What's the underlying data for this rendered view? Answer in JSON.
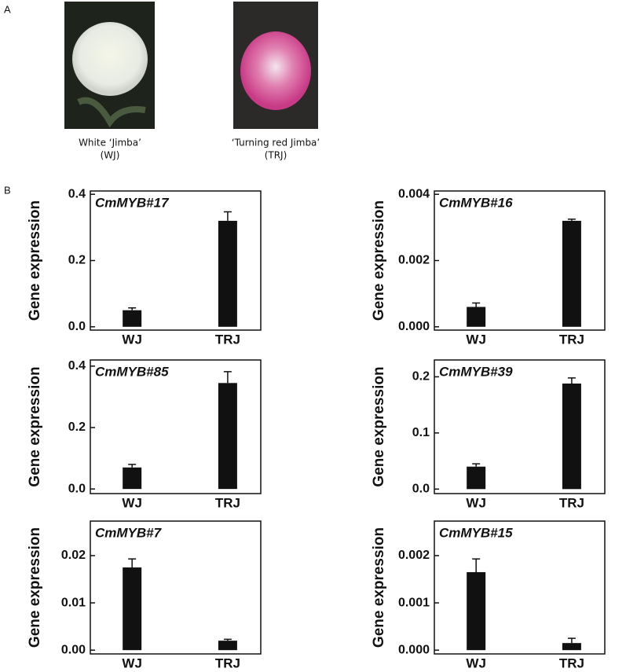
{
  "panels": {
    "a": "A",
    "b": "B"
  },
  "photos": [
    {
      "label": "White ‘Jimba’",
      "code": "(WJ)"
    },
    {
      "label": "‘Turning red Jimba’",
      "code": "(TRJ)"
    }
  ],
  "chart_data": [
    {
      "type": "bar",
      "title": "CmMYB#17",
      "ylabel": "Gene expression",
      "categories": [
        "WJ",
        "TRJ"
      ],
      "values": [
        0.05,
        0.32
      ],
      "errors": [
        0.007,
        0.027
      ],
      "color": "#111111",
      "ylim": [
        -0.01,
        0.41
      ],
      "yticks": [
        {
          "value": 0,
          "label": "0.0"
        },
        0.2,
        0.4
      ]
    },
    {
      "type": "bar",
      "title": "CmMYB#16",
      "ylabel": "Gene expression",
      "categories": [
        "WJ",
        "TRJ"
      ],
      "values": [
        0.0006,
        0.0032
      ],
      "errors": [
        0.00012,
        5e-05
      ],
      "color": "#111111",
      "ylim": [
        -0.0001,
        0.0041
      ],
      "yticks": [
        {
          "value": 0,
          "label": "0.000"
        },
        0.002,
        0.004
      ]
    },
    {
      "type": "bar",
      "title": "CmMYB#85",
      "ylabel": "Gene expression",
      "categories": [
        "WJ",
        "TRJ"
      ],
      "values": [
        0.07,
        0.345
      ],
      "errors": [
        0.01,
        0.037
      ],
      "color": "#111111",
      "ylim": [
        -0.015,
        0.42
      ],
      "yticks": [
        {
          "value": 0,
          "label": "0.0"
        },
        0.2,
        0.4
      ]
    },
    {
      "type": "bar",
      "title": "CmMYB#39",
      "ylabel": "Gene expression",
      "categories": [
        "WJ",
        "TRJ"
      ],
      "values": [
        0.04,
        0.188
      ],
      "errors": [
        0.005,
        0.01
      ],
      "color": "#111111",
      "ylim": [
        -0.008,
        0.23
      ],
      "yticks": [
        {
          "value": 0,
          "label": "0.0"
        },
        0.1,
        0.2
      ]
    },
    {
      "type": "bar",
      "title": "CmMYB#7",
      "ylabel": "Gene expression",
      "categories": [
        "WJ",
        "TRJ"
      ],
      "values": [
        0.0175,
        0.002
      ],
      "errors": [
        0.0018,
        0.0003
      ],
      "color": "#111111",
      "ylim": [
        -0.0008,
        0.0273
      ],
      "yticks": [
        {
          "value": 0,
          "label": "0.00"
        },
        0.01,
        0.02
      ]
    },
    {
      "type": "bar",
      "title": "CmMYB#15",
      "ylabel": "Gene expression",
      "categories": [
        "WJ",
        "TRJ"
      ],
      "values": [
        0.00165,
        0.00015
      ],
      "errors": [
        0.00028,
        0.0001
      ],
      "color": "#111111",
      "ylim": [
        -8e-05,
        0.00273
      ],
      "yticks": [
        {
          "value": 0,
          "label": "0.000"
        },
        0.001,
        0.002
      ]
    }
  ]
}
